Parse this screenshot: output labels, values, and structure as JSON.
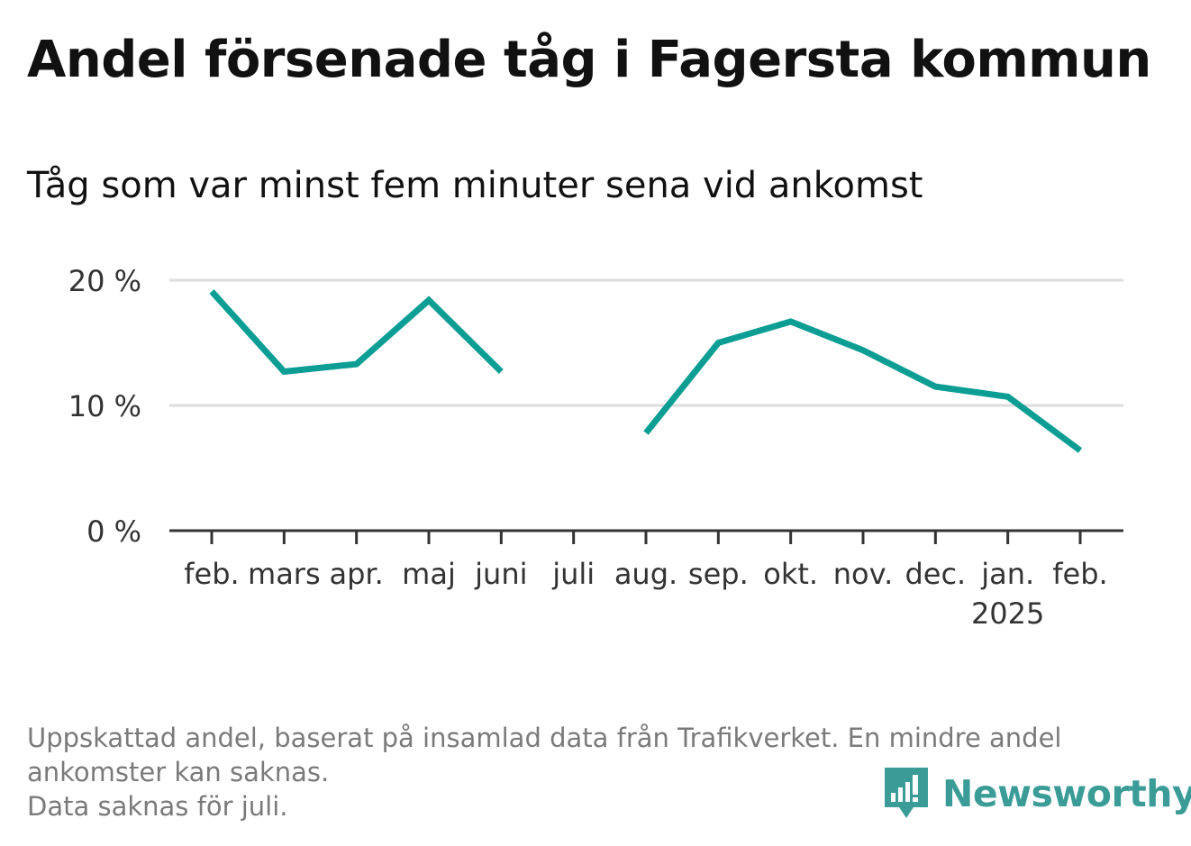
{
  "title": "Andel försenade tåg i Fagersta kommun",
  "subtitle": "Tåg som var minst fem minuter sena vid ankomst",
  "chart_data": {
    "type": "line",
    "categories": [
      "feb.",
      "mars",
      "apr.",
      "maj",
      "juni",
      "juli",
      "aug.",
      "sep.",
      "okt.",
      "nov.",
      "dec.",
      "jan.",
      "feb."
    ],
    "year_label": {
      "category_index": 11,
      "text": "2025"
    },
    "series": [
      {
        "values": [
          19.1,
          12.7,
          13.3,
          18.4,
          12.7,
          null,
          7.8,
          15.0,
          16.7,
          14.4,
          11.5,
          10.7,
          6.4
        ]
      }
    ],
    "y_ticks": [
      0,
      10,
      20
    ],
    "y_tick_labels": [
      "0 %",
      "10 %",
      "20 %"
    ],
    "ylim": [
      0,
      20
    ],
    "grid": true,
    "line_color": "#0c9e94",
    "xlabel": "",
    "ylabel": ""
  },
  "footnote": {
    "line1": "Uppskattad andel, baserat på insamlad data från Trafikverket. En mindre andel",
    "line2": "ankomster kan saknas.",
    "line3": "Data saknas för juli."
  },
  "logo": {
    "text": "Newsworthy",
    "color": "#3b9c97",
    "icon": "newsworthy-logo-icon"
  }
}
